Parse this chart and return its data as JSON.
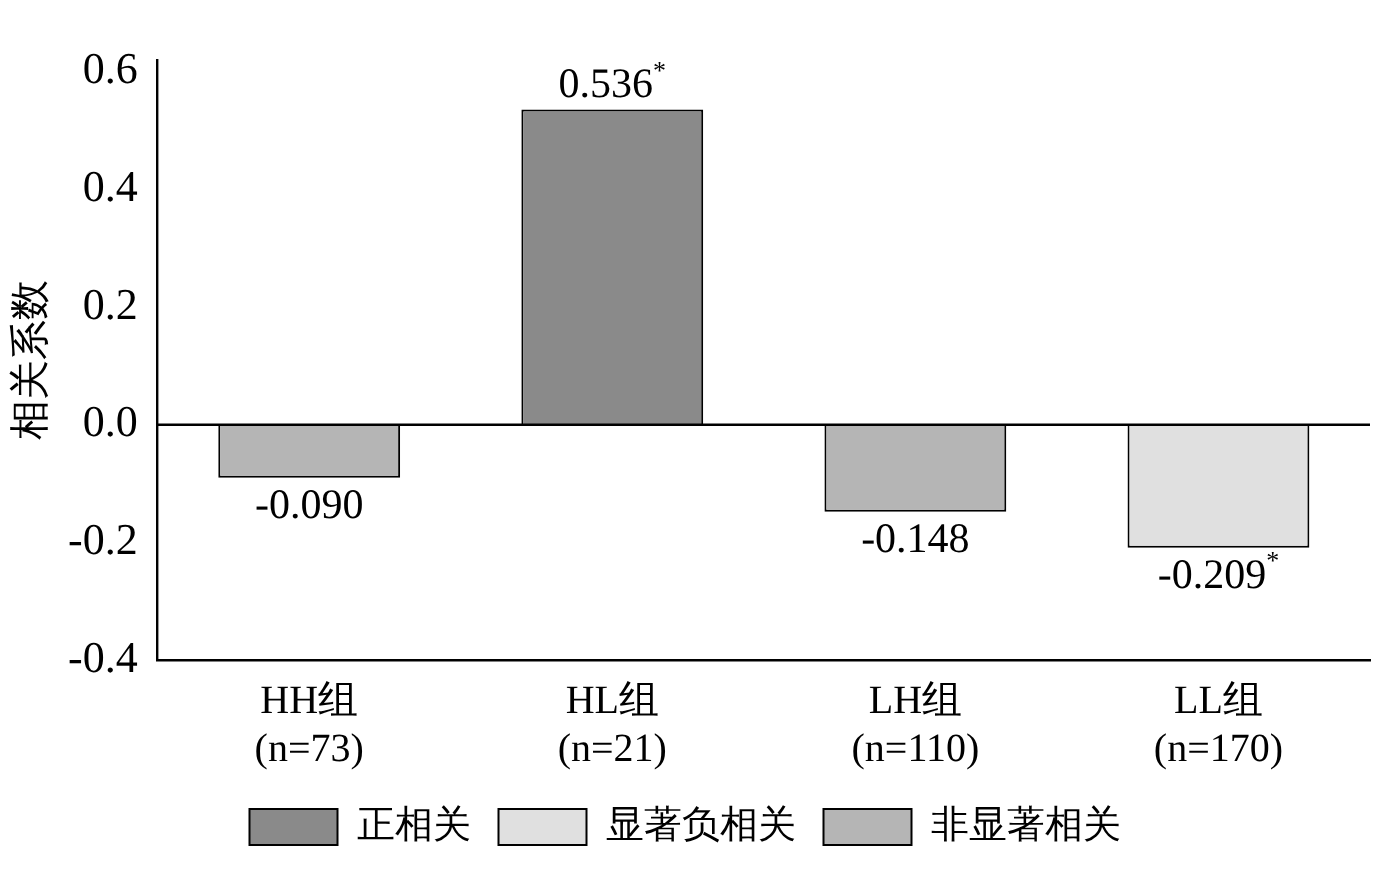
{
  "chart_data": {
    "type": "bar",
    "ylabel": "相关系数",
    "categories": [
      "HH组\n(n=73)",
      "HL组\n(n=21)",
      "LH组\n(n=110)",
      "LL组\n(n=170)"
    ],
    "series": [
      {
        "name": "正相关",
        "color": "#8a8a8a",
        "values": [
          null,
          0.536,
          null,
          null
        ],
        "value_labels": [
          null,
          "0.536$^{*}$",
          null,
          null
        ]
      },
      {
        "name": "显著负相关",
        "color": "#e0e0e0",
        "values": [
          null,
          null,
          null,
          -0.209
        ],
        "value_labels": [
          null,
          null,
          null,
          "-0.209$^{*}$"
        ]
      },
      {
        "name": "非显著相关",
        "color": "#b5b5b5",
        "values": [
          -0.09,
          null,
          -0.148,
          null
        ],
        "value_labels": [
          "-0.090",
          null,
          "-0.148",
          null
        ]
      }
    ],
    "ylim": [
      -0.4,
      0.62
    ],
    "yticks": [
      {
        "value": -0.4,
        "label": "-0.4"
      },
      {
        "value": -0.2,
        "label": "-0.2"
      },
      {
        "value": 0,
        "label": "0.0"
      },
      {
        "value": 0.2,
        "label": "0.2"
      },
      {
        "value": 0.4,
        "label": "0.4"
      },
      {
        "value": 0.6,
        "label": "0.6"
      }
    ],
    "ref_lines": [
      {
        "axis": "y",
        "value": 0
      }
    ],
    "grid": false,
    "legend": "bottom"
  }
}
